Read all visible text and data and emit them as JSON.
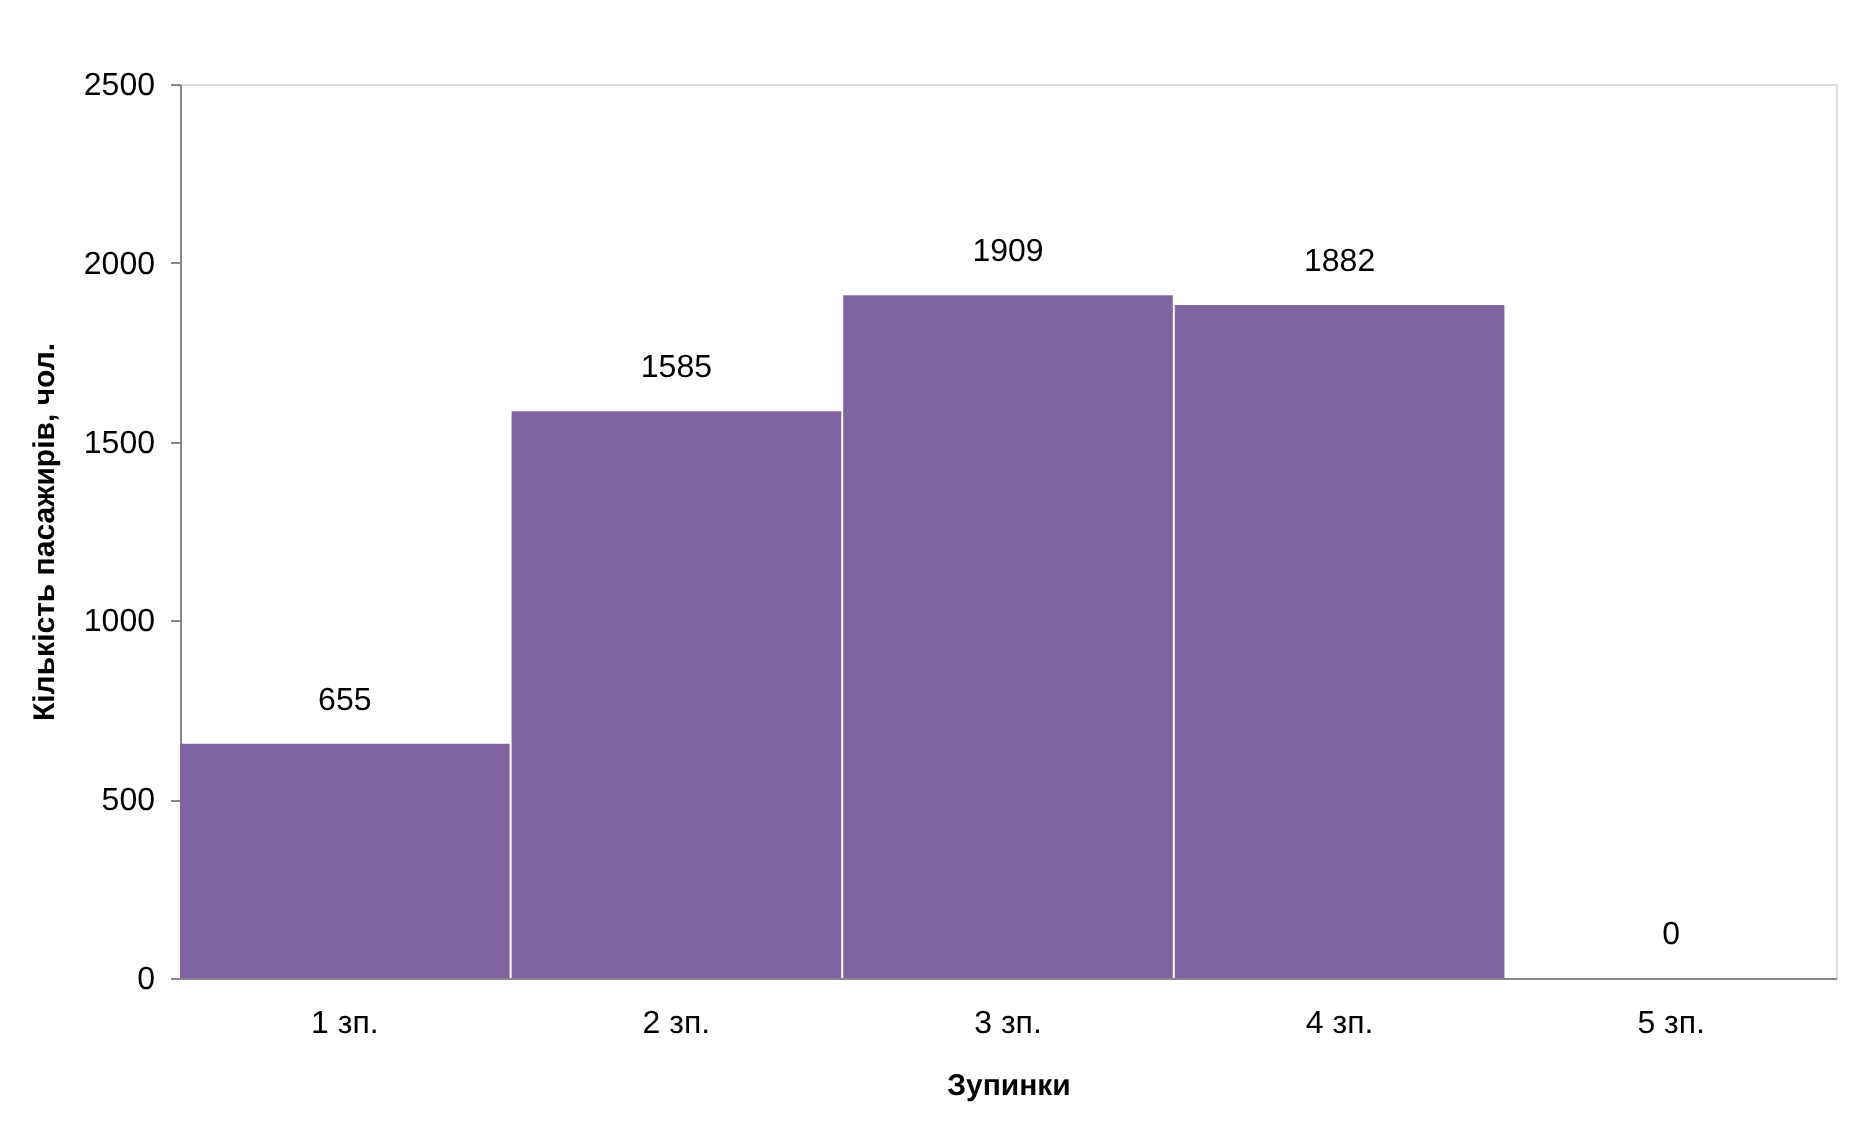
{
  "chart_data": {
    "type": "bar",
    "xlabel": "Зупинки",
    "ylabel": "Кількість пасажирів, чол.",
    "categories": [
      "1 зп.",
      "2 зп.",
      "3 зп.",
      "4 зп.",
      "5 зп."
    ],
    "values": [
      655,
      1585,
      1909,
      1882,
      0
    ],
    "color": "#8064a2",
    "ylim": [
      0,
      2500
    ],
    "yticks": [
      0,
      500,
      1000,
      1500,
      2000,
      2500
    ],
    "grid": false,
    "data_labels": true
  }
}
